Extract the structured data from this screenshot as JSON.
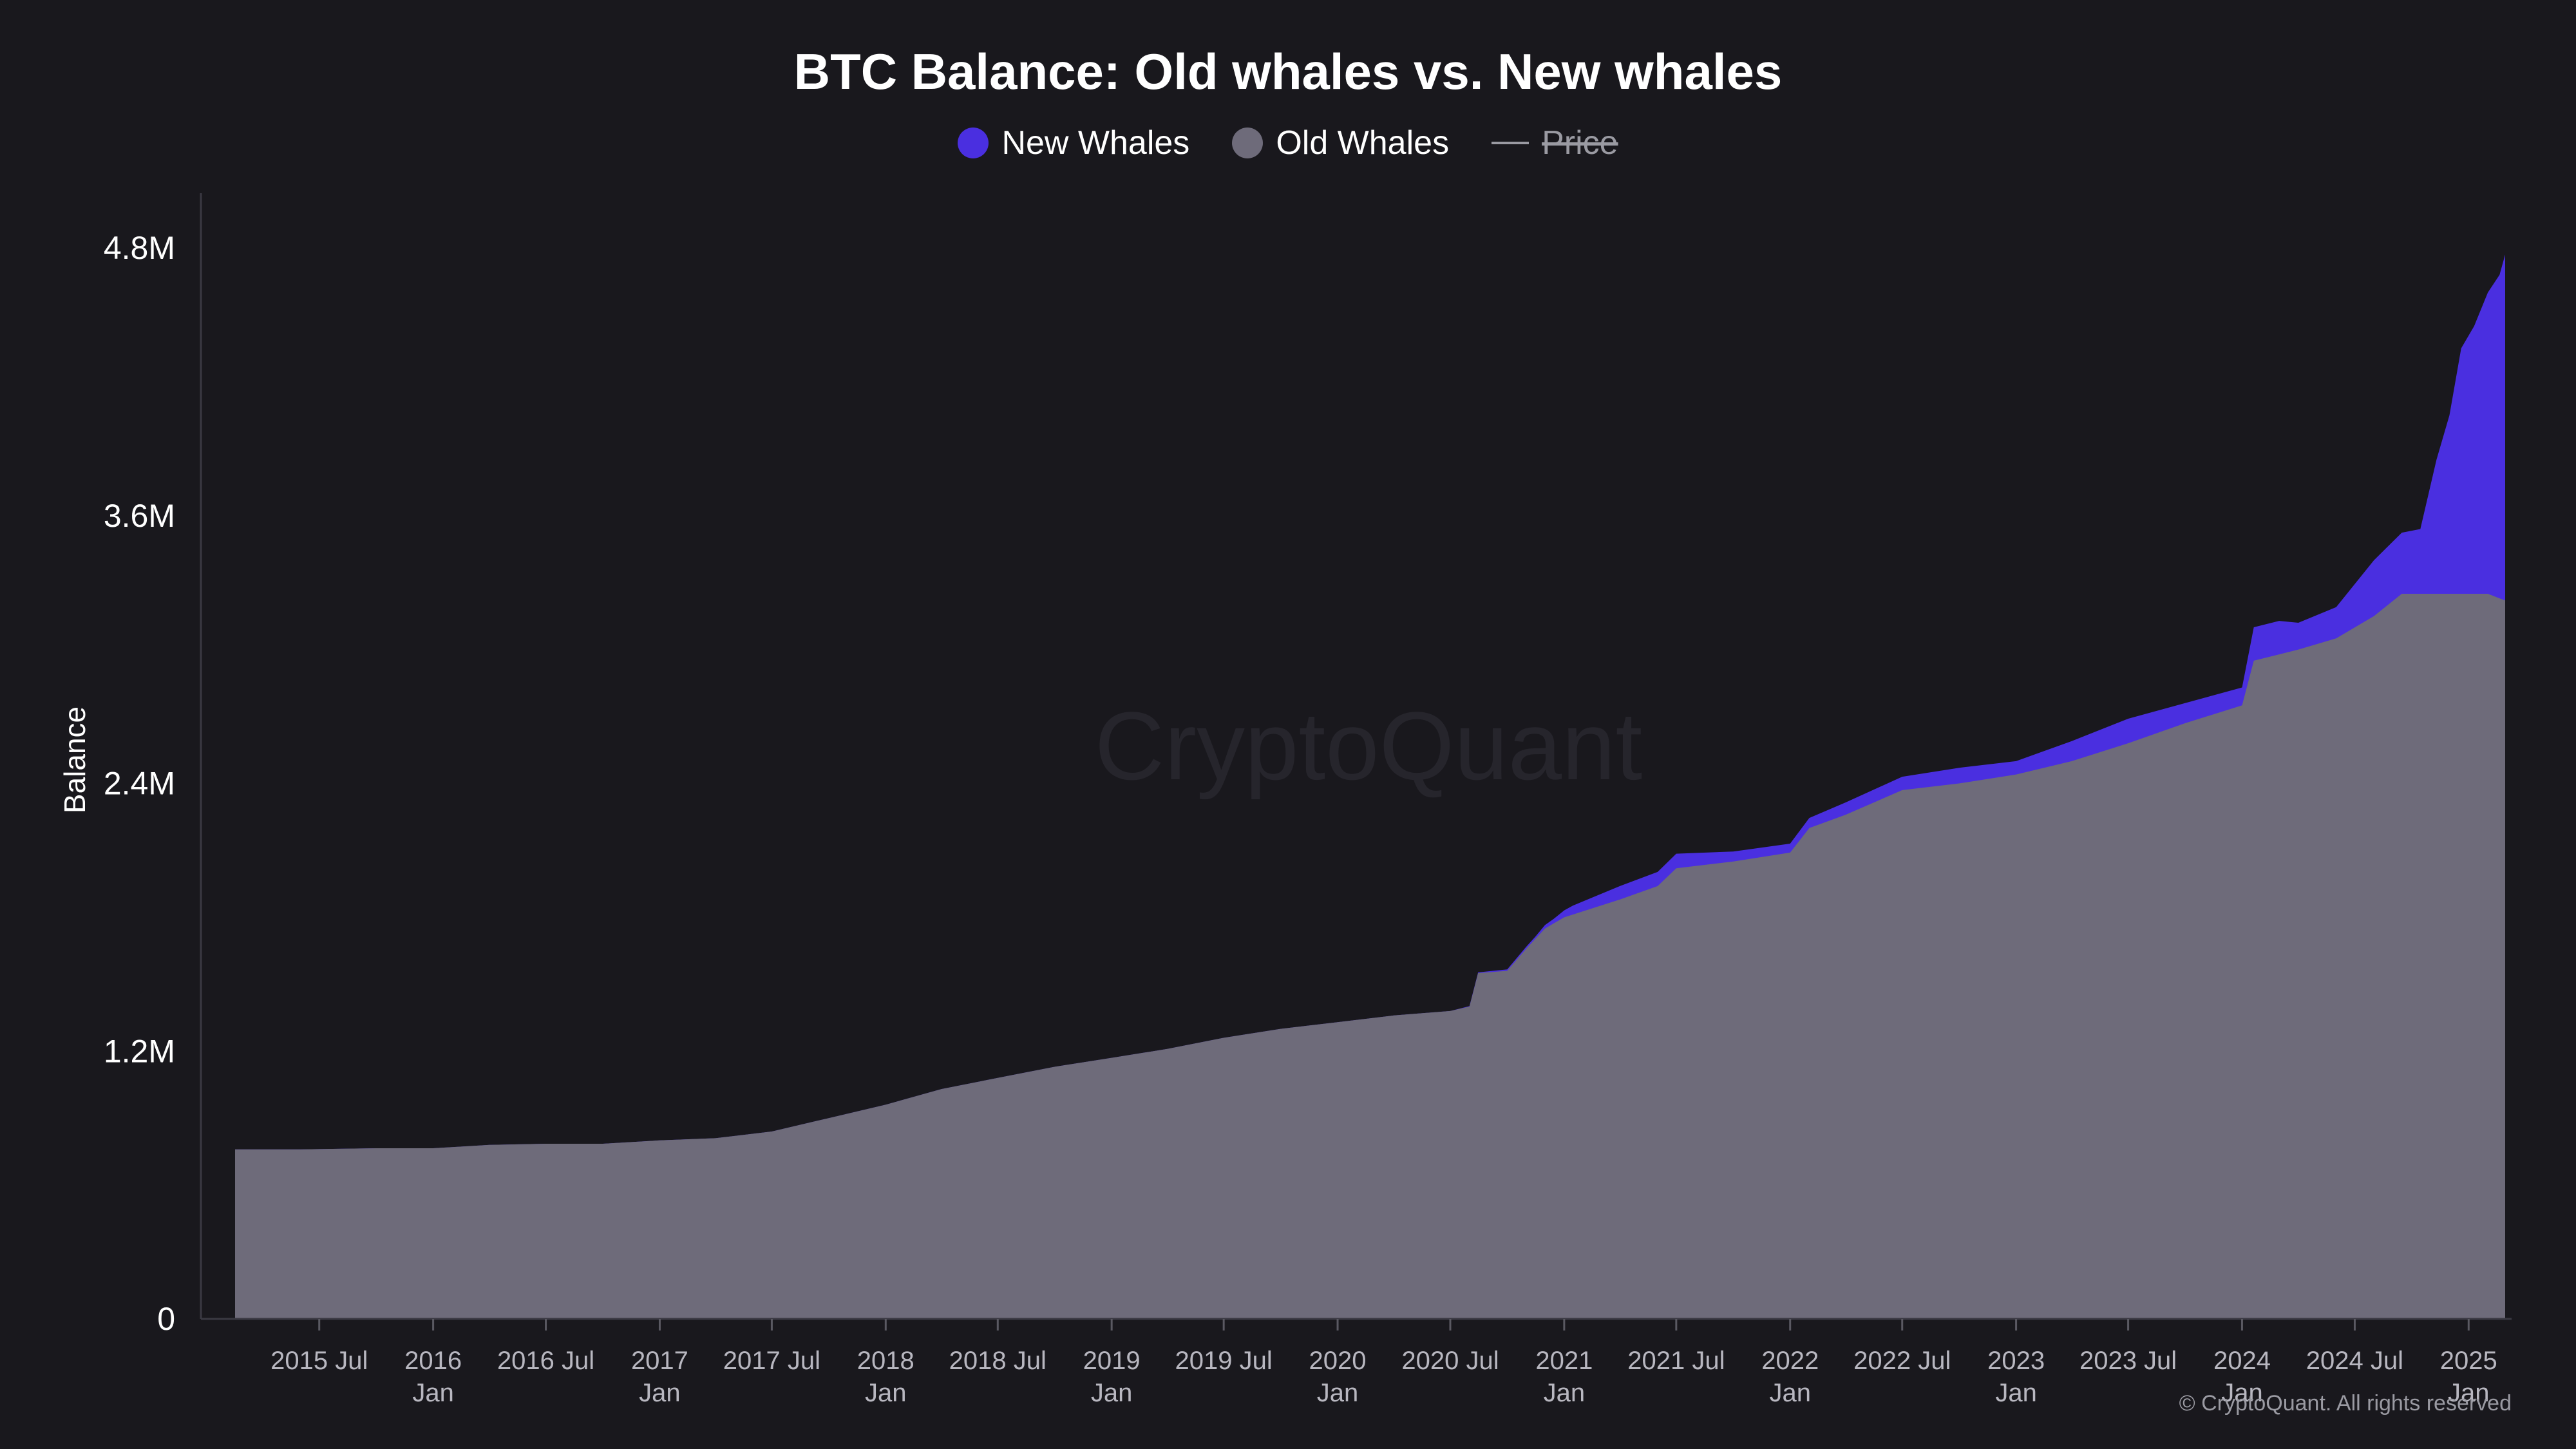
{
  "chart_data": {
    "type": "area",
    "title": "BTC Balance: Old whales vs. New whales",
    "ylabel": "Balance",
    "ylim": [
      0,
      5000000
    ],
    "y_ticks": [
      {
        "value": 0,
        "label": "0"
      },
      {
        "value": 1200000,
        "label": "1.2M"
      },
      {
        "value": 2400000,
        "label": "2.4M"
      },
      {
        "value": 3600000,
        "label": "3.6M"
      },
      {
        "value": 4800000,
        "label": "4.8M"
      }
    ],
    "x_range": [
      "2015-02-15",
      "2025-03-01"
    ],
    "x_ticks": [
      {
        "date": "2015-07-01",
        "label": "2015 Jul"
      },
      {
        "date": "2016-01-01",
        "label": "2016",
        "sub": "Jan"
      },
      {
        "date": "2016-07-01",
        "label": "2016 Jul"
      },
      {
        "date": "2017-01-01",
        "label": "2017",
        "sub": "Jan"
      },
      {
        "date": "2017-07-01",
        "label": "2017 Jul"
      },
      {
        "date": "2018-01-01",
        "label": "2018",
        "sub": "Jan"
      },
      {
        "date": "2018-07-01",
        "label": "2018 Jul"
      },
      {
        "date": "2019-01-01",
        "label": "2019",
        "sub": "Jan"
      },
      {
        "date": "2019-07-01",
        "label": "2019 Jul"
      },
      {
        "date": "2020-01-01",
        "label": "2020",
        "sub": "Jan"
      },
      {
        "date": "2020-07-01",
        "label": "2020 Jul"
      },
      {
        "date": "2021-01-01",
        "label": "2021",
        "sub": "Jan"
      },
      {
        "date": "2021-07-01",
        "label": "2021 Jul"
      },
      {
        "date": "2022-01-01",
        "label": "2022",
        "sub": "Jan"
      },
      {
        "date": "2022-07-01",
        "label": "2022 Jul"
      },
      {
        "date": "2023-01-01",
        "label": "2023",
        "sub": "Jan"
      },
      {
        "date": "2023-07-01",
        "label": "2023 Jul"
      },
      {
        "date": "2024-01-01",
        "label": "2024",
        "sub": "Jan"
      },
      {
        "date": "2024-07-01",
        "label": "2024 Jul"
      },
      {
        "date": "2025-01-01",
        "label": "2025",
        "sub": "Jan"
      }
    ],
    "legend_position": "top-center",
    "grid": false,
    "series": [
      {
        "name": "New Whales",
        "color": "#4a2fe0",
        "stacked_on": "Old Whales",
        "points": [
          [
            "2015-02-15",
            0
          ],
          [
            "2019-01-01",
            0
          ],
          [
            "2020-07-01",
            0
          ],
          [
            "2020-11-15",
            10000
          ],
          [
            "2020-12-15",
            20000
          ],
          [
            "2021-01-15",
            40000
          ],
          [
            "2021-04-01",
            60000
          ],
          [
            "2021-07-01",
            65000
          ],
          [
            "2021-10-01",
            45000
          ],
          [
            "2022-01-01",
            40000
          ],
          [
            "2022-04-01",
            55000
          ],
          [
            "2022-07-01",
            60000
          ],
          [
            "2022-10-01",
            70000
          ],
          [
            "2023-01-01",
            60000
          ],
          [
            "2023-04-01",
            90000
          ],
          [
            "2023-07-01",
            110000
          ],
          [
            "2023-10-01",
            90000
          ],
          [
            "2024-01-01",
            80000
          ],
          [
            "2024-01-20",
            150000
          ],
          [
            "2024-03-01",
            150000
          ],
          [
            "2024-04-01",
            120000
          ],
          [
            "2024-06-01",
            140000
          ],
          [
            "2024-08-01",
            250000
          ],
          [
            "2024-10-15",
            290000
          ],
          [
            "2024-11-10",
            600000
          ],
          [
            "2024-12-01",
            800000
          ],
          [
            "2024-12-20",
            1100000
          ],
          [
            "2025-01-10",
            1200000
          ],
          [
            "2025-02-01",
            1350000
          ],
          [
            "2025-02-20",
            1450000
          ],
          [
            "2025-03-01",
            1550000
          ]
        ]
      },
      {
        "name": "Old Whales",
        "color": "#6e6b7a",
        "points": [
          [
            "2015-02-15",
            760000
          ],
          [
            "2015-06-01",
            760000
          ],
          [
            "2015-10-01",
            765000
          ],
          [
            "2016-01-01",
            765000
          ],
          [
            "2016-04-01",
            780000
          ],
          [
            "2016-07-01",
            785000
          ],
          [
            "2016-10-01",
            785000
          ],
          [
            "2017-01-01",
            800000
          ],
          [
            "2017-04-01",
            810000
          ],
          [
            "2017-07-01",
            840000
          ],
          [
            "2017-10-01",
            900000
          ],
          [
            "2018-01-01",
            960000
          ],
          [
            "2018-04-01",
            1030000
          ],
          [
            "2018-07-01",
            1080000
          ],
          [
            "2018-10-01",
            1130000
          ],
          [
            "2019-01-01",
            1170000
          ],
          [
            "2019-04-01",
            1210000
          ],
          [
            "2019-07-01",
            1260000
          ],
          [
            "2019-10-01",
            1300000
          ],
          [
            "2020-01-01",
            1330000
          ],
          [
            "2020-04-01",
            1360000
          ],
          [
            "2020-07-01",
            1380000
          ],
          [
            "2020-08-01",
            1400000
          ],
          [
            "2020-08-15",
            1550000
          ],
          [
            "2020-10-01",
            1560000
          ],
          [
            "2020-11-01",
            1660000
          ],
          [
            "2020-12-01",
            1750000
          ],
          [
            "2021-01-01",
            1800000
          ],
          [
            "2021-04-01",
            1880000
          ],
          [
            "2021-06-01",
            1940000
          ],
          [
            "2021-07-01",
            2020000
          ],
          [
            "2021-10-01",
            2050000
          ],
          [
            "2022-01-01",
            2090000
          ],
          [
            "2022-02-01",
            2200000
          ],
          [
            "2022-04-01",
            2260000
          ],
          [
            "2022-07-01",
            2370000
          ],
          [
            "2022-10-01",
            2400000
          ],
          [
            "2023-01-01",
            2440000
          ],
          [
            "2023-04-01",
            2500000
          ],
          [
            "2023-07-01",
            2580000
          ],
          [
            "2023-10-01",
            2670000
          ],
          [
            "2024-01-01",
            2750000
          ],
          [
            "2024-01-20",
            2950000
          ],
          [
            "2024-04-01",
            3000000
          ],
          [
            "2024-06-01",
            3050000
          ],
          [
            "2024-08-01",
            3150000
          ],
          [
            "2024-09-15",
            3250000
          ],
          [
            "2024-12-01",
            3250000
          ],
          [
            "2025-02-01",
            3250000
          ],
          [
            "2025-03-01",
            3220000
          ]
        ]
      },
      {
        "name": "Price",
        "color": "#9a9aa2",
        "hidden": true
      }
    ]
  },
  "watermark": "CryptoQuant",
  "copyright": "© CryptoQuant. All rights reserved"
}
